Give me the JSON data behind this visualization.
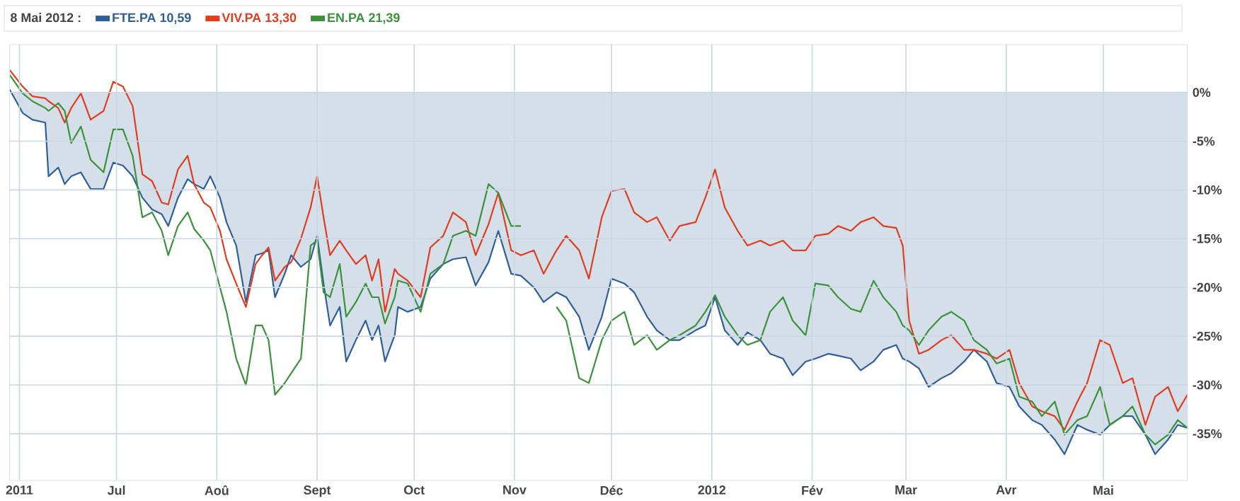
{
  "chart_data": {
    "type": "line",
    "title": "8 Mai 2012 :",
    "legend": "top",
    "grid": true,
    "xlim": [
      "2011-05-29",
      "2012-05-27"
    ],
    "ylim": [
      -39.8,
      4.9
    ],
    "xticks": [
      {
        "value": "2011-06-01",
        "label": "2011"
      },
      {
        "value": "2011-07-01",
        "label": "Jul"
      },
      {
        "value": "2011-08-01",
        "label": "Aoû"
      },
      {
        "value": "2011-09-01",
        "label": "Sept"
      },
      {
        "value": "2011-10-01",
        "label": "Oct"
      },
      {
        "value": "2011-11-01",
        "label": "Nov"
      },
      {
        "value": "2011-12-01",
        "label": "Déc"
      },
      {
        "value": "2012-01-01",
        "label": "2012"
      },
      {
        "value": "2012-02-01",
        "label": "Fév"
      },
      {
        "value": "2012-03-01",
        "label": "Mar"
      },
      {
        "value": "2012-04-01",
        "label": "Avr"
      },
      {
        "value": "2012-05-01",
        "label": "Mai"
      }
    ],
    "yticks": [
      {
        "value": 0,
        "label": "0%"
      },
      {
        "value": -5,
        "label": "-5%"
      },
      {
        "value": -10,
        "label": "-10%"
      },
      {
        "value": -15,
        "label": "-15%"
      },
      {
        "value": -20,
        "label": "-20%"
      },
      {
        "value": -25,
        "label": "-25%"
      },
      {
        "value": -30,
        "label": "-30%"
      },
      {
        "value": -35,
        "label": "-35%"
      }
    ],
    "x": [
      "2011-05-29",
      "2011-06-02",
      "2011-06-05",
      "2011-06-09",
      "2011-06-10",
      "2011-06-13",
      "2011-06-15",
      "2011-06-17",
      "2011-06-20",
      "2011-06-23",
      "2011-06-27",
      "2011-06-30",
      "2011-07-03",
      "2011-07-06",
      "2011-07-09",
      "2011-07-12",
      "2011-07-15",
      "2011-07-17",
      "2011-07-20",
      "2011-07-23",
      "2011-07-25",
      "2011-07-28",
      "2011-07-30",
      "2011-08-02",
      "2011-08-04",
      "2011-08-07",
      "2011-08-10",
      "2011-08-13",
      "2011-08-15",
      "2011-08-17",
      "2011-08-19",
      "2011-08-22",
      "2011-08-24",
      "2011-08-27",
      "2011-08-30",
      "2011-09-01",
      "2011-09-03",
      "2011-09-05",
      "2011-09-08",
      "2011-09-10",
      "2011-09-13",
      "2011-09-16",
      "2011-09-18",
      "2011-09-20",
      "2011-09-22",
      "2011-09-25",
      "2011-09-26",
      "2011-09-29",
      "2011-10-03",
      "2011-10-06",
      "2011-10-10",
      "2011-10-13",
      "2011-10-17",
      "2011-10-20",
      "2011-10-24",
      "2011-10-27",
      "2011-10-31",
      "2011-11-03",
      "2011-11-07",
      "2011-11-10",
      "2011-11-14",
      "2011-11-17",
      "2011-11-21",
      "2011-11-24",
      "2011-11-28",
      "2011-12-01",
      "2011-12-05",
      "2011-12-08",
      "2011-12-12",
      "2011-12-15",
      "2011-12-19",
      "2011-12-22",
      "2011-12-27",
      "2011-12-30",
      "2012-01-02",
      "2012-01-05",
      "2012-01-09",
      "2012-01-12",
      "2012-01-16",
      "2012-01-19",
      "2012-01-23",
      "2012-01-26",
      "2012-01-30",
      "2012-02-02",
      "2012-02-06",
      "2012-02-09",
      "2012-02-13",
      "2012-02-16",
      "2012-02-20",
      "2012-02-23",
      "2012-02-27",
      "2012-02-29",
      "2012-03-02",
      "2012-03-05",
      "2012-03-08",
      "2012-03-12",
      "2012-03-15",
      "2012-03-19",
      "2012-03-22",
      "2012-03-26",
      "2012-03-29",
      "2012-04-02",
      "2012-04-05",
      "2012-04-09",
      "2012-04-12",
      "2012-04-16",
      "2012-04-19",
      "2012-04-23",
      "2012-04-26",
      "2012-04-30",
      "2012-05-03",
      "2012-05-07",
      "2012-05-10",
      "2012-05-14",
      "2012-05-17",
      "2012-05-21",
      "2012-05-24",
      "2012-05-27"
    ],
    "series": [
      {
        "name": "FTE.PA 10,59",
        "type": "area",
        "color": "#2f5f98",
        "values": [
          0.3,
          -2.1,
          -2.8,
          -3.1,
          -8.6,
          -7.7,
          -9.4,
          -8.6,
          -8.2,
          -9.9,
          -9.9,
          -7.2,
          -7.5,
          -8.6,
          -10.8,
          -12,
          -12.5,
          -13.7,
          -10.8,
          -8.9,
          -9.4,
          -9.9,
          -8.6,
          -10.8,
          -13.3,
          -15.7,
          -21.5,
          -16.7,
          -16.5,
          -16.2,
          -21,
          -18.6,
          -16.7,
          -17.9,
          -17.1,
          -14.7,
          -19.6,
          -23.9,
          -22,
          -27.6,
          -25.4,
          -23.4,
          -25.4,
          -23.9,
          -27.6,
          -24.9,
          -22,
          -22.5,
          -22,
          -19.1,
          -17.6,
          -17.1,
          -16.9,
          -19.8,
          -17.4,
          -14.2,
          -18.6,
          -18.8,
          -20,
          -21.5,
          -20.5,
          -21,
          -23,
          -26.4,
          -23,
          -19.1,
          -19.6,
          -20.5,
          -23,
          -24.4,
          -25.4,
          -25.4,
          -24.4,
          -23.9,
          -21,
          -24.4,
          -25.9,
          -24.6,
          -25.4,
          -26.8,
          -27.3,
          -29,
          -27.6,
          -27.3,
          -26.8,
          -27,
          -27.3,
          -28.5,
          -27.6,
          -26.4,
          -25.9,
          -27.3,
          -27.6,
          -28.3,
          -30.2,
          -29.3,
          -28.8,
          -27.6,
          -26.4,
          -27.6,
          -29.8,
          -30.2,
          -32.2,
          -33.6,
          -34.1,
          -35.6,
          -37.1,
          -34.1,
          -34.6,
          -35.1,
          -34.1,
          -33.2,
          -33.2,
          -35.1,
          -37.1,
          -35.6,
          -34.1,
          -34.4
        ]
      },
      {
        "name": "VIV.PA 13,30",
        "type": "line",
        "color": "#e23c1e",
        "values": [
          2.3,
          0.6,
          -0.4,
          -0.6,
          -0.9,
          -1.6,
          -3.1,
          -1.6,
          -0.1,
          -2.8,
          -1.9,
          1.1,
          0.6,
          -1.4,
          -8.4,
          -9.1,
          -11.3,
          -11.5,
          -7.9,
          -6.5,
          -9.4,
          -11.3,
          -11.8,
          -14.2,
          -17.1,
          -19.6,
          -22,
          -17.6,
          -16.7,
          -15.9,
          -19.3,
          -17.9,
          -17.4,
          -15,
          -11.8,
          -8.6,
          -12.8,
          -16.7,
          -15.2,
          -16.2,
          -17.6,
          -16.7,
          -19.3,
          -17.1,
          -22.5,
          -18.1,
          -18.6,
          -19.3,
          -21,
          -15.9,
          -14.7,
          -12.3,
          -13.3,
          -16.7,
          -13.5,
          -10.3,
          -16.2,
          -16.7,
          -16.2,
          -18.6,
          -16.2,
          -14.7,
          -16.2,
          -19.1,
          -12.8,
          -10.1,
          -9.9,
          -12.3,
          -13.3,
          -12.8,
          -15.2,
          -13.7,
          -13.3,
          -10.8,
          -7.9,
          -11.8,
          -14.2,
          -15.7,
          -15.2,
          -15.7,
          -15.2,
          -16.2,
          -16.2,
          -14.7,
          -14.5,
          -13.7,
          -14.2,
          -13.3,
          -12.8,
          -13.7,
          -13.9,
          -15.7,
          -23.4,
          -26.8,
          -26.4,
          -25.4,
          -24.9,
          -26.4,
          -26.4,
          -26.8,
          -27.3,
          -26.4,
          -29.8,
          -32.2,
          -32.7,
          -33.2,
          -34.6,
          -31.7,
          -29.8,
          -25.4,
          -25.9,
          -29.8,
          -29.3,
          -34.1,
          -31.2,
          -30.2,
          -32.7,
          -31
        ]
      },
      {
        "name": "EN.PA 21,39",
        "type": "line",
        "color": "#3a923a",
        "values": [
          1.8,
          -0.1,
          -0.9,
          -1.6,
          -1.9,
          -1.1,
          -1.9,
          -5.2,
          -3.5,
          -6.9,
          -8.2,
          -3.8,
          -3.8,
          -6.5,
          -12.8,
          -12.3,
          -14.2,
          -16.7,
          -13.7,
          -12.3,
          -14,
          -15.2,
          -16.2,
          -20,
          -22.5,
          -27.3,
          -30,
          -23.9,
          -23.9,
          -25.4,
          -31,
          -29.8,
          -28.8,
          -27.3,
          -15.7,
          -15.2,
          -20.5,
          -21,
          -17.6,
          -23,
          -21.5,
          -19.6,
          -21,
          -21,
          -23.7,
          -21,
          -19.3,
          -19.6,
          -22.5,
          -18.6,
          -17.6,
          -14.7,
          -14.2,
          -14.7,
          -9.4,
          -10.3,
          -13.7,
          -13.7,
          null,
          null,
          -22,
          -23.4,
          -29.3,
          -29.8,
          -25.4,
          -23.4,
          -22.5,
          -25.9,
          -24.9,
          -26.4,
          -25.4,
          -24.9,
          -23.9,
          -22.5,
          -20.8,
          -23,
          -24.9,
          -25.9,
          -25.4,
          -22.5,
          -21,
          -23.4,
          -24.9,
          -19.6,
          -19.8,
          -21,
          -22.2,
          -22.5,
          -19.3,
          -21,
          -22.5,
          -23.9,
          -24.4,
          -25.9,
          -24.4,
          -23,
          -22.5,
          -23.4,
          -25.4,
          -26.4,
          -27.8,
          -27.3,
          -31.2,
          -31.7,
          -33.2,
          -31.7,
          -35.1,
          -33.6,
          -33.2,
          -30.2,
          -34.1,
          -33.2,
          -32.2,
          -35.1,
          -36.1,
          -35.1,
          -33.6,
          -34.4
        ]
      }
    ]
  }
}
